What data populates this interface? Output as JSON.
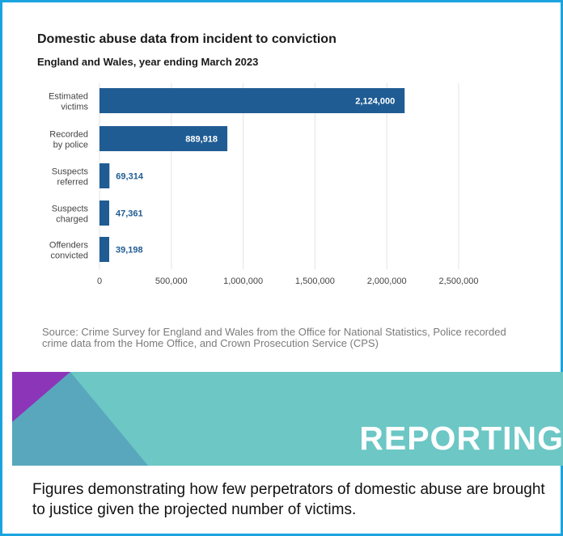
{
  "chart_data": {
    "type": "bar",
    "orientation": "horizontal",
    "title": "Domestic abuse data from incident to conviction",
    "subtitle": "England and Wales, year ending March 2023",
    "categories": [
      [
        "Estimated",
        "victims"
      ],
      [
        "Recorded",
        "by police"
      ],
      [
        "Suspects",
        "referred"
      ],
      [
        "Suspects",
        "charged"
      ],
      [
        "Offenders",
        "convicted"
      ]
    ],
    "values": [
      2124000,
      889918,
      69314,
      47361,
      39198
    ],
    "data_labels": [
      "2,124,000",
      "889,918",
      "69,314",
      "47,361",
      "39,198"
    ],
    "x_ticks": [
      0,
      500000,
      1000000,
      1500000,
      2000000,
      2500000
    ],
    "x_tick_labels": [
      "0",
      "500,000",
      "1,000,000",
      "1,500,000",
      "2,000,000",
      "2,500,000"
    ],
    "xlim": [
      0,
      2500000
    ],
    "grid": true,
    "bar_color": "#1f5c93",
    "grid_color": "#e3e3e3",
    "source": "Source: Crime Survey for England and Wales from the Office for National Statistics, Police recorded crime data from the Home Office, and Crown Prosecution Service (CPS)"
  },
  "banner": {
    "label": "REPORTING",
    "colors": {
      "teal": "#6cc7c5",
      "blue": "#59a7bc",
      "purple": "#8d35b9"
    }
  },
  "caption": "Figures demonstrating how few perpetrators of domestic abuse are brought to justice given the projected number of victims.",
  "frame_color": "#1aa3df"
}
